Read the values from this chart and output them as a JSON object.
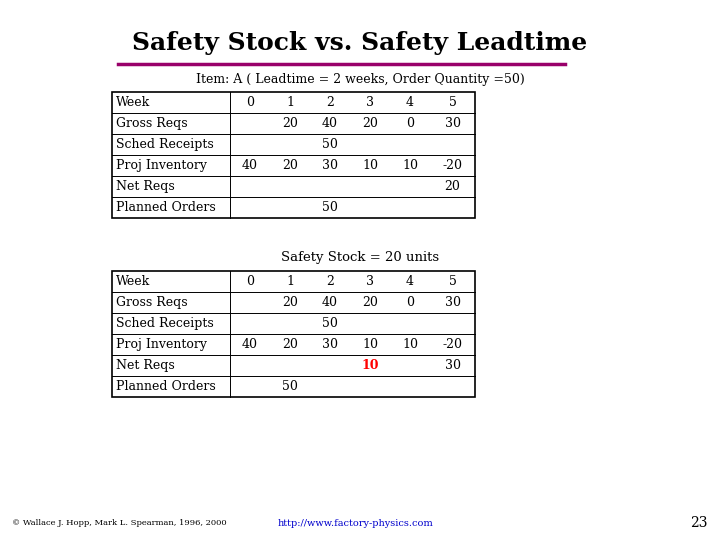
{
  "title": "Safety Stock vs. Safety Leadtime",
  "title_color": "#000000",
  "title_fontsize": 18,
  "separator_color": "#99006a",
  "bg_color": "#ffffff",
  "table1_header": "Item: A ( Leadtime = 2 weeks, Order Quantity =50)",
  "table2_header": "Safety Stock = 20 units",
  "col_header": [
    "Week",
    "0",
    "1",
    "2",
    "3",
    "4",
    "5"
  ],
  "rows1": [
    [
      "Gross Reqs",
      "",
      "20",
      "40",
      "20",
      "0",
      "30"
    ],
    [
      "Sched Receipts",
      "",
      "",
      "50",
      "",
      "",
      ""
    ],
    [
      "Proj Inventory",
      "40",
      "20",
      "30",
      "10",
      "10",
      "-20"
    ],
    [
      "Net Reqs",
      "",
      "",
      "",
      "",
      "",
      "20"
    ],
    [
      "Planned Orders",
      "",
      "",
      "50",
      "",
      "",
      ""
    ]
  ],
  "rows2": [
    [
      "Gross Reqs",
      "",
      "20",
      "40",
      "20",
      "0",
      "30"
    ],
    [
      "Sched Receipts",
      "",
      "",
      "50",
      "",
      "",
      ""
    ],
    [
      "Proj Inventory",
      "40",
      "20",
      "30",
      "10",
      "10",
      "-20"
    ],
    [
      "Net Reqs",
      "",
      "",
      "",
      "10",
      "",
      "30"
    ],
    [
      "Planned Orders",
      "",
      "50",
      "",
      "",
      "",
      ""
    ]
  ],
  "red_cell_table2": [
    3,
    4
  ],
  "footer_left": "© Wallace J. Hopp, Mark L. Spearman, 1996, 2000",
  "footer_right": "http://www.factory-physics.com",
  "footer_right_color": "#0000cc",
  "page_number": "23",
  "fig_width": 7.2,
  "fig_height": 5.4,
  "dpi": 100
}
